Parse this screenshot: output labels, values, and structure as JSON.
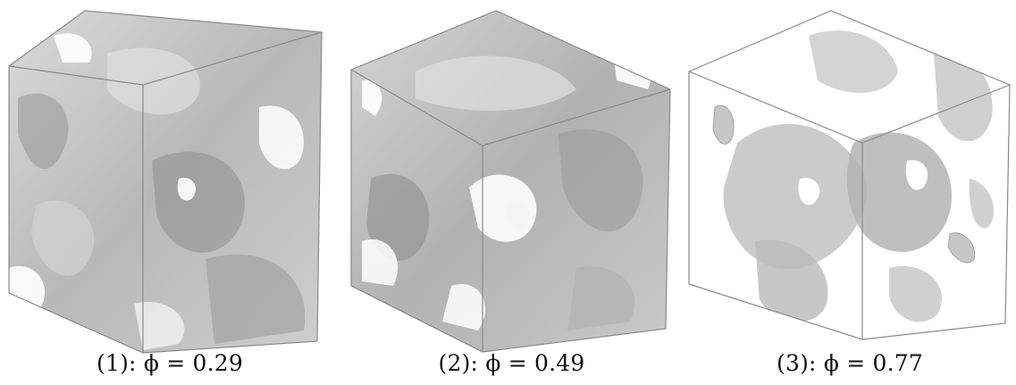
{
  "panels": [
    {
      "caption": "(1): ϕ = 0.29",
      "porosity": 0.29
    },
    {
      "caption": "(2): ϕ = 0.49",
      "porosity": 0.49
    },
    {
      "caption": "(3): ϕ = 0.77",
      "porosity": 0.77
    }
  ],
  "colors": {
    "edge": "#8a8a8a",
    "surface": "#bdbdbd",
    "surface_dark": "#9e9e9e",
    "surface_light": "#dcdcdc",
    "background": "#ffffff"
  }
}
